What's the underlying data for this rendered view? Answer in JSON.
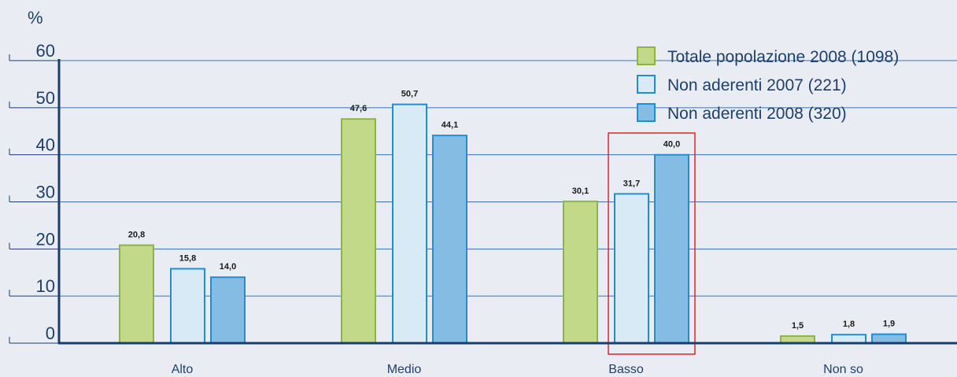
{
  "chart_data": {
    "type": "bar",
    "ylabel": "%",
    "ylim": [
      0,
      60
    ],
    "yticks": [
      "0",
      "10",
      "20",
      "30",
      "40",
      "50",
      "60"
    ],
    "categories": [
      "Alto",
      "Medio",
      "Basso",
      "Non so"
    ],
    "series": [
      {
        "name": "Totale popolazione 2008 (1098)",
        "values": [
          20.8,
          47.6,
          30.1,
          1.5
        ],
        "labels": [
          "20,8",
          "47,6",
          "30,1",
          "1,5"
        ]
      },
      {
        "name": "Non aderenti 2007 (221)",
        "values": [
          15.8,
          50.7,
          31.7,
          1.8
        ],
        "labels": [
          "15,8",
          "50,7",
          "31,7",
          "1,8"
        ]
      },
      {
        "name": "Non aderenti 2008 (320)",
        "values": [
          14.0,
          44.1,
          40.0,
          1.9
        ],
        "labels": [
          "14,0",
          "44,1",
          "40,0",
          "1,9"
        ]
      }
    ],
    "highlight": {
      "category": "Basso",
      "series": [
        1,
        2
      ],
      "color": "#d9262c"
    },
    "grid": true,
    "legend_position": "top-right",
    "colors": {
      "background": "#e9edf3",
      "grid": "#3f6fa6",
      "axis": "#1b3d6e",
      "text": "#1f3f6b",
      "series_fill": [
        "#c3d98a",
        "#d9eaf7",
        "#84bce4"
      ],
      "series_stroke": [
        "#8db73c",
        "#1f8fd0",
        "#1f8fd0"
      ]
    }
  }
}
